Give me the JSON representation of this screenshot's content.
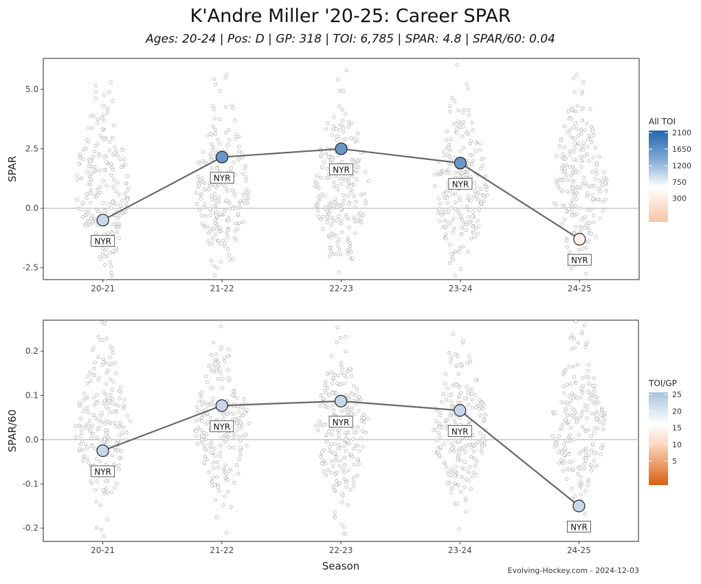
{
  "title": "K'Andre Miller '20-25: Career SPAR",
  "subtitle": "Ages: 20-24 | Pos: D | GP: 318 | TOI: 6,785 | SPAR: 4.8 | SPAR/60: 0.04",
  "credit": "Evolving-Hockey.com - 2024-12-03",
  "chart_data": [
    {
      "type": "scatter",
      "title": "",
      "xlabel": "",
      "ylabel": "SPAR",
      "categories": [
        "20-21",
        "21-22",
        "22-23",
        "23-24",
        "24-25"
      ],
      "ylim": [
        -3.0,
        6.3
      ],
      "yticks": [
        -2.5,
        0.0,
        2.5,
        5.0
      ],
      "ytick_labels": [
        "-2.5",
        "0.0",
        "2.5",
        "5.0"
      ],
      "zero_line": 0,
      "series": [
        {
          "values": [
            -0.5,
            2.15,
            2.5,
            1.9,
            -1.3
          ],
          "team_labels": [
            "NYR",
            "NYR",
            "NYR",
            "NYR",
            "NYR"
          ],
          "fill_colors": [
            "#c7d6ea",
            "#6b96c8",
            "#6b96c8",
            "#6b96c8",
            "#fbf0ea"
          ]
        }
      ],
      "background_distribution": {
        "center": 1.0,
        "spread": 1.8,
        "count_per_season": 220
      },
      "legend": {
        "title": "All TOI",
        "placement": "right",
        "tick_labels": [
          "2100",
          "1650",
          "1200",
          "750",
          "300"
        ],
        "colors": [
          "#2166ac",
          "#8eb2d9",
          "#ffffff",
          "#f7c9ae"
        ]
      }
    },
    {
      "type": "scatter",
      "title": "",
      "xlabel": "Season",
      "ylabel": "SPAR/60",
      "categories": [
        "20-21",
        "21-22",
        "22-23",
        "23-24",
        "24-25"
      ],
      "ylim": [
        -0.23,
        0.27
      ],
      "yticks": [
        -0.2,
        -0.1,
        0.0,
        0.1,
        0.2
      ],
      "ytick_labels": [
        "-0.2",
        "-0.1",
        "0.0",
        "0.1",
        "0.2"
      ],
      "zero_line": 0,
      "series": [
        {
          "values": [
            -0.025,
            0.077,
            0.087,
            0.066,
            -0.15
          ],
          "team_labels": [
            "NYR",
            "NYR",
            "NYR",
            "NYR",
            "NYR"
          ],
          "fill_colors": [
            "#c7d6ea",
            "#c7d6ea",
            "#c7d6ea",
            "#c7d6ea",
            "#c7d6ea"
          ]
        }
      ],
      "background_distribution": {
        "center": 0.03,
        "spread": 0.09,
        "count_per_season": 210
      },
      "legend": {
        "title": "TOI/GP",
        "placement": "right",
        "tick_labels": [
          "25",
          "20",
          "15",
          "10",
          "5"
        ],
        "colors": [
          "#a9c2de",
          "#ffffff",
          "#f6b78a",
          "#d95f0e"
        ]
      }
    }
  ]
}
